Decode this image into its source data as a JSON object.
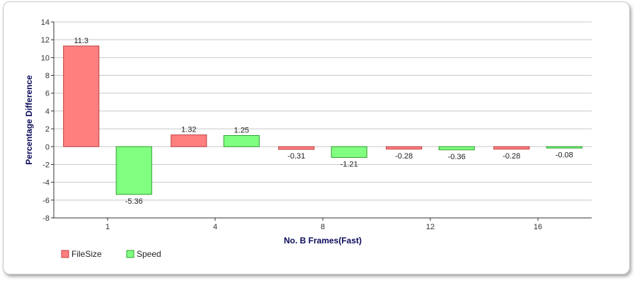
{
  "chart_data": {
    "type": "bar",
    "categories": [
      "1",
      "4",
      "8",
      "12",
      "16"
    ],
    "series": [
      {
        "name": "FileSize",
        "values": [
          11.3,
          1.32,
          -0.31,
          -0.28,
          -0.28
        ],
        "labels": [
          "11.3",
          "1.32",
          "-0.31",
          "-0.28",
          "-0.28"
        ]
      },
      {
        "name": "Speed",
        "values": [
          -5.36,
          1.25,
          -1.21,
          -0.36,
          -0.08
        ],
        "labels": [
          "-5.36",
          "1.25",
          "-1.21",
          "-0.36",
          "-0.08"
        ]
      }
    ],
    "xlabel": "No. B Frames(Fast)",
    "ylabel": "Percentage Difference",
    "ylim": [
      -8,
      14
    ],
    "yticks": [
      -8,
      -6,
      -4,
      -2,
      0,
      2,
      4,
      6,
      8,
      10,
      12,
      14
    ],
    "grid": true,
    "legend_position": "bottom-left"
  },
  "colors": {
    "FileSize": "#ff7f7f",
    "FileSize_edge": "#c04040",
    "Speed": "#80ff80",
    "Speed_edge": "#30a030",
    "grid": "#c8c8c8",
    "axis": "#333333"
  }
}
